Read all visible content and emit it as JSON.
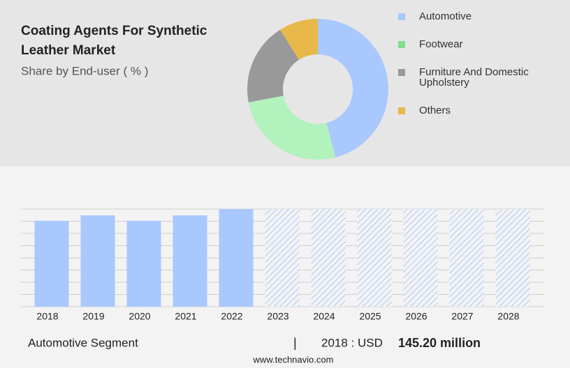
{
  "chart_data": [
    {
      "type": "donut",
      "title": "Coating Agents For Synthetic Leather Market",
      "subtitle": "Share by End-user ( % )",
      "categories": [
        "Automotive",
        "Footwear",
        "Furniture And Domestic Upholstery",
        "Others"
      ],
      "values": [
        46,
        26,
        19,
        9
      ],
      "colors": [
        "#a8c8fe",
        "#b2f2bd",
        "#999999",
        "#e8b84a"
      ],
      "legend_colors": [
        "#a8c8fe",
        "#7ee08f",
        "#999999",
        "#e8b84a"
      ]
    },
    {
      "type": "bar",
      "categories": [
        "2018",
        "2019",
        "2020",
        "2021",
        "2022",
        "2023",
        "2024",
        "2025",
        "2026",
        "2027",
        "2028"
      ],
      "values": [
        145.2,
        154.4,
        145.2,
        154.4,
        165,
        null,
        null,
        null,
        null,
        null,
        null
      ],
      "color": "#a8c8fe",
      "ylim": [
        0,
        165
      ],
      "grid": true
    }
  ],
  "footer": {
    "segment": "Automotive Segment",
    "separator": "|",
    "year_label": "2018 : USD",
    "value_label": "145.20 million",
    "source": "www.technavio.com"
  }
}
